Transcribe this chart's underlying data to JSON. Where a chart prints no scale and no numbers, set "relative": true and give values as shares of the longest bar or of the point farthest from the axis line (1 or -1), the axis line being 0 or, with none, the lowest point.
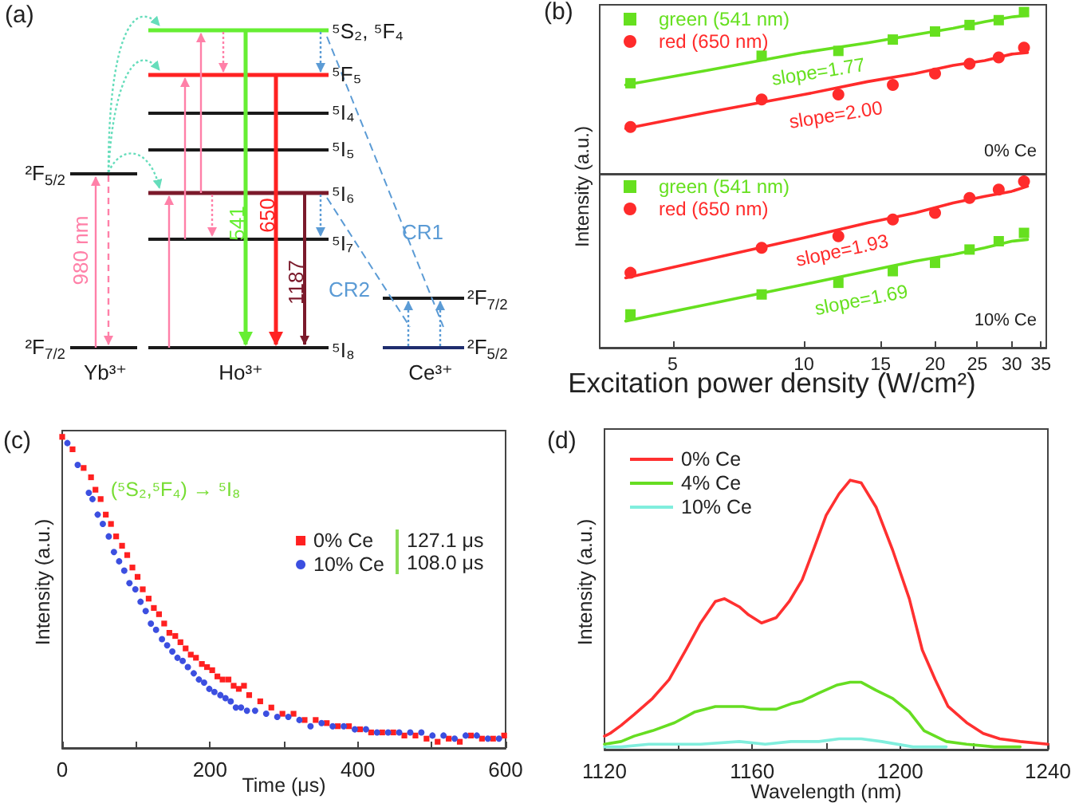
{
  "chart_data": [
    {
      "type": "other",
      "title": "(a)",
      "annotations": [
        "⁵S₂, ⁵F₄",
        "⁵F₅",
        "⁵I₄",
        "⁵I₅",
        "⁵I₆",
        "⁵I₇",
        "⁵I₈",
        "²F$_{5/2}$",
        "²F$_{7/2}$",
        "²F$_{7/2}$",
        "²F$_{5/2}$",
        "Yb³⁺",
        "Ho³⁺",
        "Ce³⁺",
        "980 nm",
        "541",
        "650",
        "1187",
        "CR1",
        "CR2"
      ]
    },
    {
      "type": "scatter",
      "title": "(b)",
      "x": [
        4,
        8,
        12,
        16,
        20,
        24,
        28,
        32
      ],
      "series": [
        {
          "type": "line",
          "color": "#66e01f",
          "marker": "none",
          "x": [
            3.9,
            6,
            10,
            14,
            18,
            22,
            26,
            30,
            32.6
          ],
          "values": [
            0.55,
            0.64,
            0.75,
            0.81,
            0.86,
            0.9,
            0.94,
            0.97,
            0.98
          ]
        },
        {
          "type": "line",
          "color": "#ff2b2b",
          "marker": "none",
          "x": [
            3.9,
            6,
            10,
            14,
            18,
            22,
            26,
            30,
            32.6
          ],
          "values": [
            0.28,
            0.38,
            0.49,
            0.57,
            0.62,
            0.67,
            0.7,
            0.74,
            0.75
          ]
        },
        {
          "name": "green (541 nm)",
          "color": "#66e01f",
          "marker": "square",
          "values": [
            0.56,
            0.73,
            0.76,
            0.83,
            0.88,
            0.92,
            0.95,
            1.0
          ]
        },
        {
          "name": "red (650 nm)",
          "color": "#ff2b2b",
          "marker": "circle",
          "values": [
            0.29,
            0.46,
            0.49,
            0.55,
            0.62,
            0.68,
            0.72,
            0.78
          ]
        }
      ],
      "relative": true,
      "log": "x",
      "xlim": [
        3.4,
        36
      ],
      "tick_labels": false,
      "legend": "top left",
      "annotations": [
        "slope=1.77",
        "slope=2.00",
        "0% Ce"
      ]
    },
    {
      "type": "scatter",
      "x": [
        4,
        8,
        12,
        16,
        20,
        24,
        28,
        32
      ],
      "series": [
        {
          "type": "line",
          "color": "#66e01f",
          "marker": "none",
          "x": [
            3.9,
            6,
            10,
            14,
            18,
            22,
            26,
            30,
            32.6
          ],
          "values": [
            0.16,
            0.26,
            0.38,
            0.46,
            0.52,
            0.56,
            0.6,
            0.64,
            0.65
          ]
        },
        {
          "type": "line",
          "color": "#ff2b2b",
          "marker": "none",
          "x": [
            3.9,
            6,
            10,
            14,
            18,
            22,
            26,
            30,
            32.6
          ],
          "values": [
            0.42,
            0.53,
            0.66,
            0.75,
            0.81,
            0.87,
            0.91,
            0.94,
            0.97
          ]
        },
        {
          "name": "green (541 nm)",
          "color": "#66e01f",
          "marker": "square",
          "values": [
            0.2,
            0.32,
            0.39,
            0.46,
            0.51,
            0.59,
            0.64,
            0.69
          ]
        },
        {
          "name": "red (650 nm)",
          "color": "#ff2b2b",
          "marker": "circle",
          "values": [
            0.45,
            0.6,
            0.67,
            0.77,
            0.81,
            0.9,
            0.95,
            1.0
          ]
        }
      ],
      "relative": true,
      "log": "x",
      "xlim": [
        3.4,
        36
      ],
      "xticks": [
        5,
        10,
        15,
        20,
        25,
        30,
        35
      ],
      "tick_labels": "x",
      "legend": "top left",
      "xlabel": "Excitation power density (W/cm²)",
      "ylabel": "Intensity (a.u.)",
      "annotations": [
        "slope=1.93",
        "slope=1.69",
        "10% Ce"
      ]
    },
    {
      "type": "scatter",
      "title": "(c)",
      "xlabel": "Time (μs)",
      "ylabel": "Intensity (a.u.)",
      "xlim": [
        0,
        600
      ],
      "xticks": [
        0,
        {
          "value": 100,
          "label": null
        },
        200,
        {
          "value": 300,
          "label": null
        },
        400,
        {
          "value": 500,
          "label": null
        },
        600
      ],
      "relative": true,
      "legend": "right",
      "series": [
        {
          "name": "0% Ce",
          "color": "#ff2020",
          "marker": "square",
          "x": [
            0,
            14,
            29,
            39,
            45,
            52,
            59,
            66,
            73,
            81,
            88,
            95,
            102,
            109,
            117,
            124,
            131,
            138,
            145,
            153,
            160,
            167,
            174,
            181,
            189,
            196,
            203,
            210,
            217,
            225,
            232,
            239,
            246,
            253,
            268,
            283,
            298,
            313,
            328,
            343,
            358,
            373,
            388,
            403,
            418,
            433,
            448,
            463,
            478,
            493,
            508,
            523,
            538,
            553,
            568,
            583,
            598
          ],
          "values": [
            1.0,
            0.96,
            0.9,
            0.87,
            0.83,
            0.8,
            0.75,
            0.72,
            0.68,
            0.65,
            0.62,
            0.58,
            0.55,
            0.51,
            0.48,
            0.45,
            0.43,
            0.4,
            0.37,
            0.36,
            0.34,
            0.32,
            0.3,
            0.29,
            0.27,
            0.26,
            0.25,
            0.23,
            0.22,
            0.22,
            0.2,
            0.19,
            0.2,
            0.17,
            0.15,
            0.13,
            0.11,
            0.11,
            0.09,
            0.09,
            0.08,
            0.07,
            0.07,
            0.06,
            0.05,
            0.05,
            0.05,
            0.04,
            0.04,
            0.03,
            0.02,
            0.03,
            0.02,
            0.04,
            0.03,
            0.03,
            0.04
          ]
        },
        {
          "name": "10% Ce",
          "color": "#3c4fe0",
          "marker": "circle",
          "x": [
            7,
            21,
            36,
            41,
            48,
            55,
            63,
            70,
            77,
            84,
            91,
            99,
            106,
            113,
            120,
            127,
            135,
            142,
            149,
            156,
            163,
            170,
            178,
            185,
            192,
            199,
            206,
            214,
            221,
            228,
            235,
            242,
            250,
            261,
            276,
            291,
            306,
            321,
            336,
            351,
            366,
            381,
            396,
            411,
            426,
            441,
            456,
            471,
            486,
            501,
            516,
            531,
            546,
            561,
            576,
            591
          ],
          "values": [
            0.98,
            0.91,
            0.82,
            0.8,
            0.75,
            0.72,
            0.68,
            0.63,
            0.6,
            0.57,
            0.53,
            0.51,
            0.47,
            0.44,
            0.4,
            0.38,
            0.35,
            0.33,
            0.31,
            0.29,
            0.28,
            0.26,
            0.24,
            0.22,
            0.21,
            0.19,
            0.18,
            0.17,
            0.16,
            0.15,
            0.13,
            0.13,
            0.12,
            0.12,
            0.11,
            0.1,
            0.1,
            0.09,
            0.07,
            0.08,
            0.07,
            0.07,
            0.06,
            0.06,
            0.05,
            0.05,
            0.05,
            0.05,
            0.05,
            0.04,
            0.04,
            0.03,
            0.04,
            0.04,
            0.03,
            0.03
          ]
        }
      ],
      "annotations": [
        "(⁵S₂,⁵F₄) → ⁵I₈",
        "127.1 μs",
        "108.0 μs"
      ]
    },
    {
      "type": "line",
      "title": "(d)",
      "xlabel": "Wavelength (nm)",
      "ylabel": "Intensity (a.u.)",
      "xlim": [
        1120,
        1240
      ],
      "xticks": [
        1120,
        {
          "value": 1140,
          "label": null
        },
        1160,
        {
          "value": 1180,
          "label": null
        },
        1200,
        {
          "value": 1220,
          "label": null
        },
        1240
      ],
      "relative": true,
      "legend": "top left",
      "marker": "none",
      "series": [
        {
          "name": "0% Ce",
          "color": "#ff3030",
          "x": [
            1120,
            1121.5,
            1124.5,
            1128,
            1133,
            1137.5,
            1142,
            1146,
            1150,
            1152.5,
            1156.5,
            1159,
            1162.5,
            1166.5,
            1170,
            1173.5,
            1176.5,
            1180,
            1183.5,
            1186.5,
            1189.5,
            1193.5,
            1198,
            1202.5,
            1206,
            1209.5,
            1213,
            1218,
            1222.5,
            1227,
            1232.5,
            1240
          ],
          "values": [
            0.05,
            0.06,
            0.09,
            0.13,
            0.19,
            0.26,
            0.37,
            0.47,
            0.55,
            0.56,
            0.53,
            0.5,
            0.47,
            0.49,
            0.55,
            0.63,
            0.74,
            0.87,
            0.95,
            1.0,
            0.99,
            0.9,
            0.74,
            0.56,
            0.37,
            0.26,
            0.16,
            0.1,
            0.06,
            0.04,
            0.03,
            0.02
          ]
        },
        {
          "name": "4% Ce",
          "color": "#66dd22",
          "x": [
            1120,
            1124.5,
            1128,
            1133,
            1139,
            1144.5,
            1150,
            1153.5,
            1157.5,
            1162,
            1166.5,
            1170.5,
            1173.5,
            1178,
            1183,
            1186.5,
            1189.5,
            1193.5,
            1198,
            1202.5,
            1206.5,
            1212.5,
            1218,
            1225.5,
            1232.5
          ],
          "values": [
            0.02,
            0.03,
            0.05,
            0.07,
            0.1,
            0.14,
            0.16,
            0.16,
            0.16,
            0.15,
            0.15,
            0.17,
            0.18,
            0.21,
            0.24,
            0.25,
            0.25,
            0.22,
            0.19,
            0.14,
            0.07,
            0.03,
            0.02,
            0.01,
            0.01
          ]
        },
        {
          "name": "10% Ce",
          "color": "#80eedd",
          "x": [
            1120,
            1124.5,
            1132,
            1146,
            1156.5,
            1163.5,
            1170.5,
            1178,
            1183.5,
            1189.5,
            1195,
            1203.5,
            1212.5
          ],
          "values": [
            0.01,
            0.01,
            0.02,
            0.02,
            0.03,
            0.02,
            0.03,
            0.03,
            0.04,
            0.04,
            0.03,
            0.01,
            0.01
          ]
        }
      ]
    }
  ]
}
